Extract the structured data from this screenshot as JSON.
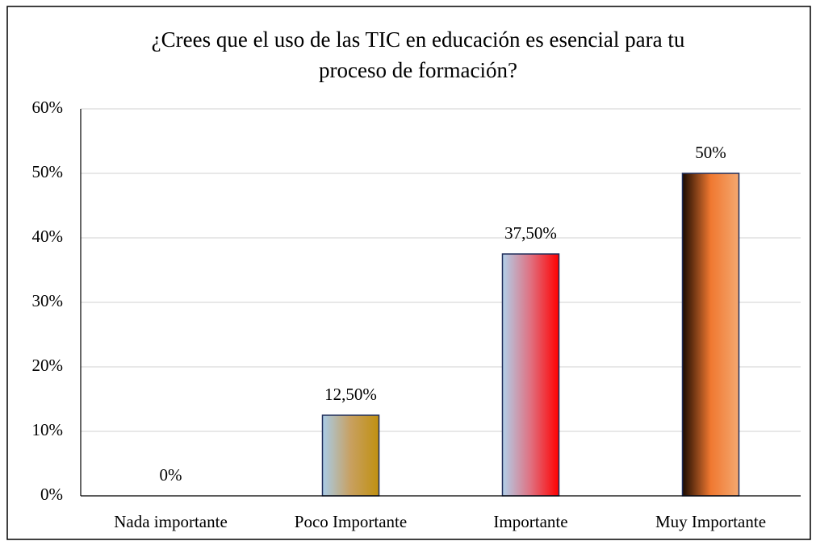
{
  "chart_data": {
    "type": "bar",
    "title": "¿Crees que el uso de las TIC en educación es esencial para tu proceso de formación?",
    "title_lines": [
      "¿Crees que el uso de las TIC en educación es esencial para tu",
      "proceso de formación?"
    ],
    "categories": [
      "Nada importante",
      "Poco Importante",
      "Importante",
      "Muy Importante"
    ],
    "values": [
      0,
      12.5,
      37.5,
      50
    ],
    "value_labels": [
      "0%",
      "12,50%",
      "37,50%",
      "50%"
    ],
    "bar_gradients": [
      [
        "#a8cce8",
        "#c8a060",
        "#c09010"
      ],
      [
        "#a8cce8",
        "#c8a060",
        "#c09010"
      ],
      [
        "#b0d0ea",
        "#e07080",
        "#ff0000"
      ],
      [
        "#1a0a00",
        "#f07830",
        "#f4a870"
      ]
    ],
    "bar_edge_color": "#1f2d5a",
    "ylim": [
      0,
      60
    ],
    "yticks": [
      {
        "value": 0,
        "label": "0%"
      },
      {
        "value": 10,
        "label": "10%"
      },
      {
        "value": 20,
        "label": "20%"
      },
      {
        "value": 30,
        "label": "30%"
      },
      {
        "value": 40,
        "label": "40%"
      },
      {
        "value": 50,
        "label": "50%"
      },
      {
        "value": 60,
        "label": "60%"
      }
    ],
    "grid": true
  }
}
